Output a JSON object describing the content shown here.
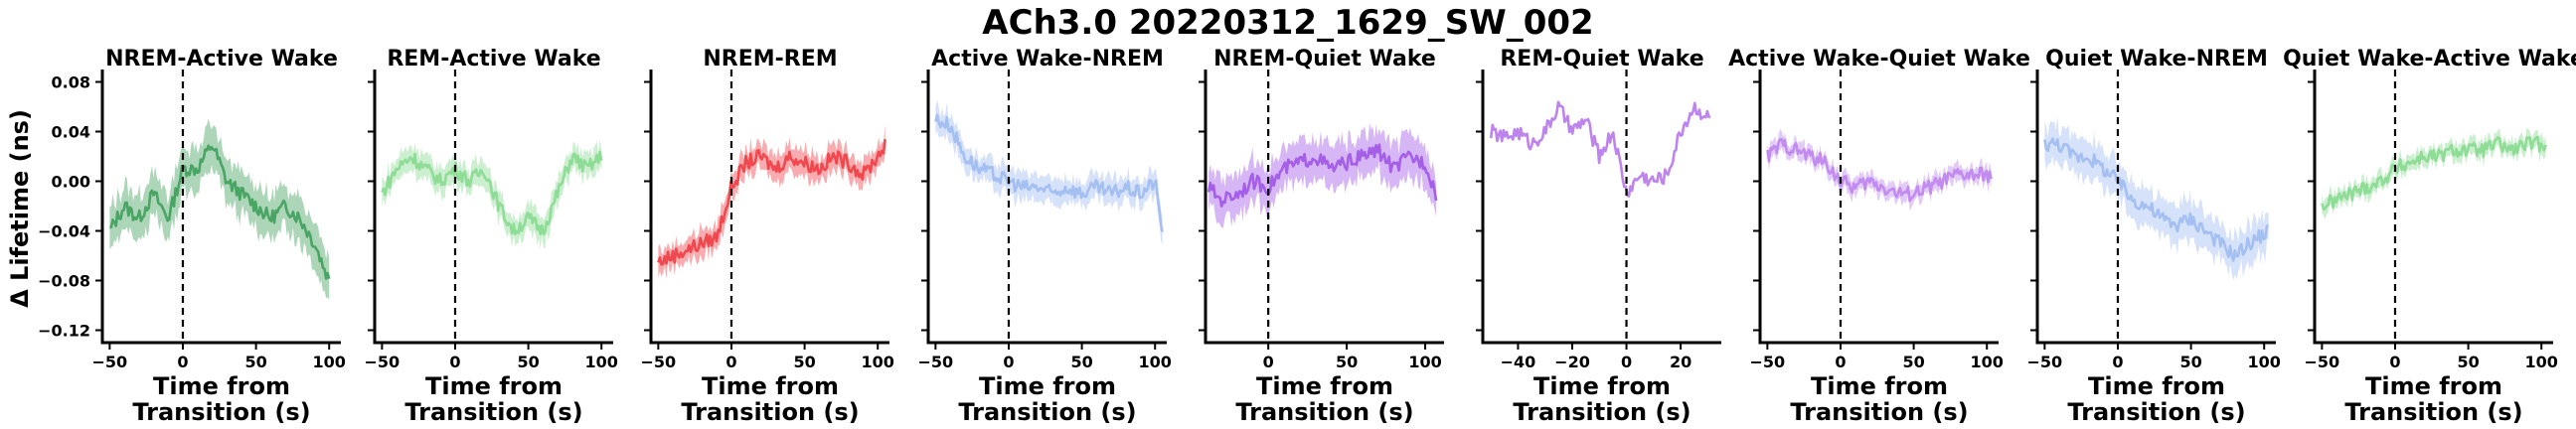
{
  "figure": {
    "title": "ACh3.0 20220312_1629_SW_002",
    "ylabel": "Δ Lifetime (ns)",
    "xlabel_line1": "Time from",
    "xlabel_line2": "Transition (s)"
  },
  "chart_data": [
    {
      "type": "line",
      "title": "NREM-Active Wake",
      "color": "#4aa564",
      "xlim": [
        -55,
        108
      ],
      "ylim": [
        -0.13,
        0.09
      ],
      "xticks": [
        -50,
        0,
        50,
        100
      ],
      "yticks": [
        0.08,
        0.04,
        0.0,
        -0.04,
        -0.08,
        -0.12
      ],
      "ytick_labels": [
        "0.08",
        "0.04",
        "0.00",
        "−0.04",
        "−0.08",
        "−0.12"
      ],
      "transition_x": 0,
      "band": 0.02,
      "x_start": -50,
      "x_end": 100,
      "x": [
        -50,
        -40,
        -30,
        -20,
        -10,
        0,
        10,
        20,
        30,
        40,
        50,
        60,
        70,
        80,
        90,
        100
      ],
      "values": [
        -0.04,
        -0.02,
        -0.03,
        -0.01,
        -0.03,
        0.01,
        0.01,
        0.03,
        0.0,
        -0.01,
        -0.02,
        -0.03,
        -0.02,
        -0.03,
        -0.05,
        -0.08
      ]
    },
    {
      "type": "line",
      "title": "REM-Active Wake",
      "color": "#8fdc97",
      "xlim": [
        -55,
        108
      ],
      "ylim": [
        -0.13,
        0.09
      ],
      "xticks": [
        -50,
        0,
        50,
        100
      ],
      "xtick_labels": [
        "−50",
        "0",
        "50",
        "100"
      ],
      "transition_x": 0,
      "band": 0.012,
      "x_start": -50,
      "x_end": 100,
      "x": [
        -50,
        -40,
        -30,
        -20,
        -10,
        0,
        10,
        20,
        30,
        40,
        50,
        60,
        70,
        80,
        90,
        100
      ],
      "values": [
        -0.01,
        0.01,
        0.02,
        0.01,
        0.0,
        0.01,
        0.0,
        0.01,
        -0.02,
        -0.04,
        -0.03,
        -0.04,
        -0.01,
        0.02,
        0.01,
        0.02
      ]
    },
    {
      "type": "line",
      "title": "NREM-REM",
      "color": "#f0484e",
      "xlim": [
        -55,
        108
      ],
      "ylim": [
        -0.13,
        0.09
      ],
      "xticks": [
        -50,
        0,
        50,
        100
      ],
      "xtick_labels": [
        "−50",
        "0",
        "50",
        "100"
      ],
      "transition_x": 0,
      "band": 0.012,
      "x_start": -50,
      "x_end": 105,
      "x": [
        -50,
        -40,
        -30,
        -20,
        -10,
        0,
        10,
        20,
        30,
        40,
        50,
        60,
        70,
        80,
        90,
        100,
        105
      ],
      "values": [
        -0.065,
        -0.06,
        -0.055,
        -0.05,
        -0.045,
        -0.005,
        0.015,
        0.02,
        0.01,
        0.02,
        0.015,
        0.01,
        0.02,
        0.015,
        0.005,
        0.02,
        0.03
      ]
    },
    {
      "type": "line",
      "title": "Active Wake-NREM",
      "color": "#a4bff2",
      "xlim": [
        -55,
        108
      ],
      "ylim": [
        -0.13,
        0.09
      ],
      "xticks": [
        -50,
        0,
        50,
        100
      ],
      "xtick_labels": [
        "−50",
        "0",
        "50",
        "100"
      ],
      "transition_x": 0,
      "band": 0.012,
      "x_start": -50,
      "x_end": 105,
      "x": [
        -50,
        -40,
        -30,
        -20,
        -10,
        0,
        10,
        20,
        30,
        40,
        50,
        60,
        70,
        80,
        90,
        100,
        105
      ],
      "values": [
        0.05,
        0.045,
        0.02,
        0.01,
        0.005,
        0.0,
        -0.005,
        -0.005,
        -0.01,
        -0.005,
        -0.01,
        -0.005,
        -0.01,
        -0.005,
        -0.01,
        0.0,
        -0.04
      ]
    },
    {
      "type": "line",
      "title": "NREM-Quiet Wake",
      "color": "#a45ee8",
      "xlim": [
        -40,
        112
      ],
      "ylim": [
        -0.13,
        0.09
      ],
      "xticks": [
        0,
        50,
        100
      ],
      "xtick_labels": [
        "0",
        "50",
        "100"
      ],
      "transition_x": 0,
      "band": 0.02,
      "x_start": -38,
      "x_end": 107,
      "x": [
        -38,
        -30,
        -20,
        -10,
        0,
        10,
        20,
        30,
        40,
        50,
        60,
        70,
        80,
        90,
        100,
        107
      ],
      "values": [
        -0.005,
        -0.015,
        -0.01,
        0.0,
        -0.005,
        0.01,
        0.015,
        0.02,
        0.01,
        0.015,
        0.02,
        0.025,
        0.01,
        0.02,
        0.015,
        -0.01
      ]
    },
    {
      "type": "line",
      "title": "REM-Quiet Wake",
      "color": "#be84ee",
      "xlim": [
        -53,
        35
      ],
      "ylim": [
        -0.13,
        0.09
      ],
      "xticks": [
        -40,
        -20,
        0,
        20
      ],
      "xtick_labels": [
        "−40",
        "−20",
        "0",
        "20"
      ],
      "transition_x": 0,
      "band": 0.0,
      "x_start": -50,
      "x_end": 31,
      "x": [
        -50,
        -45,
        -40,
        -35,
        -30,
        -25,
        -20,
        -15,
        -10,
        -5,
        0,
        5,
        10,
        15,
        20,
        25,
        31
      ],
      "values": [
        0.04,
        0.035,
        0.04,
        0.03,
        0.04,
        0.06,
        0.04,
        0.05,
        0.02,
        0.04,
        -0.01,
        0.005,
        0.0,
        0.005,
        0.04,
        0.06,
        0.05
      ]
    },
    {
      "type": "line",
      "title": "Active Wake-Quiet Wake",
      "color": "#c18bf0",
      "xlim": [
        -55,
        108
      ],
      "ylim": [
        -0.13,
        0.09
      ],
      "xticks": [
        -50,
        0,
        50,
        100
      ],
      "xtick_labels": [
        "−50",
        "0",
        "50",
        "100"
      ],
      "transition_x": 0,
      "band": 0.008,
      "x_start": -50,
      "x_end": 103,
      "x": [
        -50,
        -40,
        -30,
        -20,
        -10,
        0,
        10,
        20,
        30,
        40,
        50,
        60,
        70,
        80,
        90,
        103
      ],
      "values": [
        0.02,
        0.03,
        0.025,
        0.02,
        0.015,
        0.0,
        -0.005,
        0.0,
        -0.005,
        -0.01,
        -0.01,
        -0.005,
        0.0,
        0.005,
        0.005,
        0.005
      ]
    },
    {
      "type": "line",
      "title": "Quiet Wake-NREM",
      "color": "#a4bff2",
      "xlim": [
        -55,
        108
      ],
      "ylim": [
        -0.13,
        0.09
      ],
      "xticks": [
        -50,
        0,
        50,
        100
      ],
      "xtick_labels": [
        "−50",
        "0",
        "50",
        "100"
      ],
      "transition_x": 0,
      "band": 0.018,
      "x_start": -50,
      "x_end": 103,
      "x": [
        -50,
        -40,
        -30,
        -20,
        -10,
        0,
        10,
        20,
        30,
        40,
        50,
        60,
        70,
        80,
        90,
        103
      ],
      "values": [
        0.03,
        0.03,
        0.02,
        0.02,
        0.01,
        0.0,
        -0.015,
        -0.02,
        -0.03,
        -0.035,
        -0.03,
        -0.04,
        -0.05,
        -0.06,
        -0.05,
        -0.04
      ]
    },
    {
      "type": "line",
      "title": "Quiet Wake-Active Wake",
      "color": "#8fdc97",
      "xlim": [
        -55,
        108
      ],
      "ylim": [
        -0.13,
        0.09
      ],
      "xticks": [
        -50,
        0,
        50,
        100
      ],
      "xtick_labels": [
        "−50",
        "0",
        "50",
        "100"
      ],
      "transition_x": 0,
      "band": 0.008,
      "x_start": -50,
      "x_end": 103,
      "x": [
        -50,
        -40,
        -30,
        -20,
        -10,
        0,
        10,
        20,
        30,
        40,
        50,
        60,
        70,
        80,
        90,
        103
      ],
      "values": [
        -0.02,
        -0.015,
        -0.01,
        -0.005,
        0.0,
        0.01,
        0.015,
        0.02,
        0.02,
        0.025,
        0.025,
        0.025,
        0.03,
        0.025,
        0.03,
        0.03
      ]
    }
  ]
}
